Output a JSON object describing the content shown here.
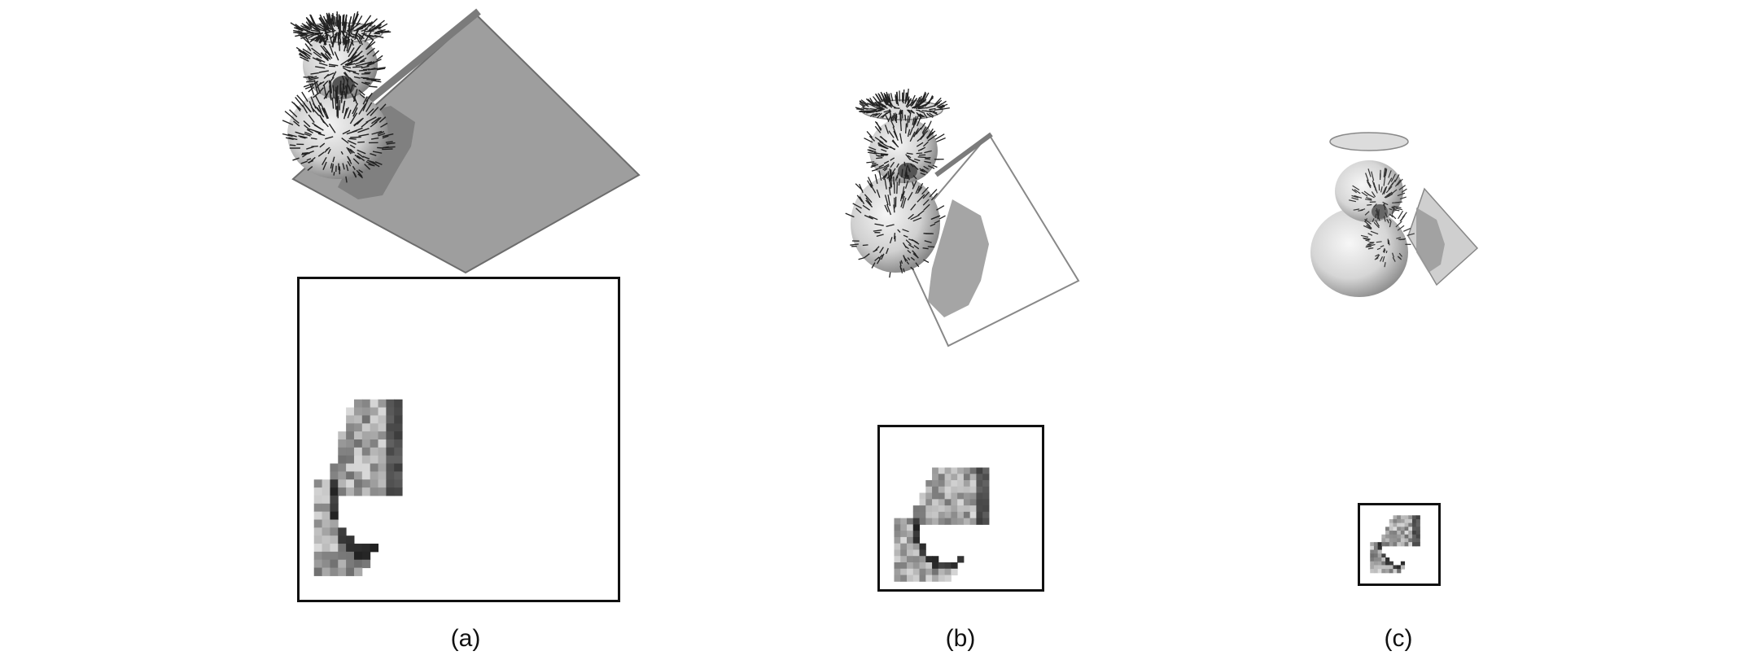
{
  "figure": {
    "panels": [
      {
        "id": "a",
        "caption": "(a)"
      },
      {
        "id": "b",
        "caption": "(b)"
      },
      {
        "id": "c",
        "caption": "(c)"
      }
    ]
  },
  "colors": {
    "background": "#ffffff",
    "surface_light": "#eeeeee",
    "surface_mid": "#bdbdbd",
    "surface_dark": "#555555",
    "plane_gray": "#9e9e9e",
    "frame": "#111111"
  },
  "icons": {
    "object": "vase-3d-object-with-normals",
    "plane": "projection-plane",
    "patch": "projected-grayscale-patch"
  }
}
